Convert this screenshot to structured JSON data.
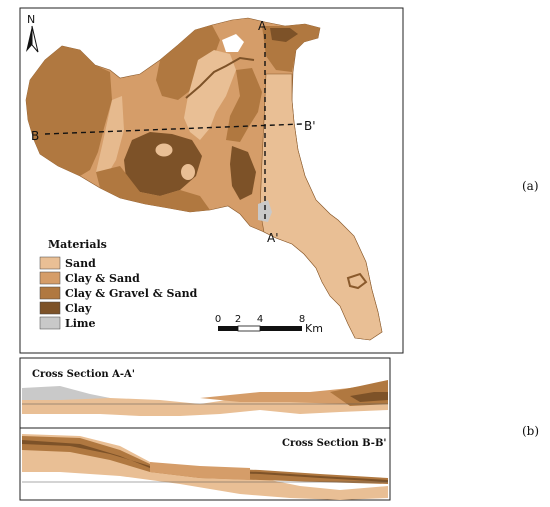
{
  "north_label": "N",
  "section_lines": {
    "a_label": "A",
    "a_prime_label": "A'",
    "b_label": "B",
    "b_prime_label": "B'"
  },
  "legend": {
    "title": "Materials",
    "items": [
      {
        "label": "Sand",
        "color": "#e9bf95"
      },
      {
        "label": "Clay & Sand",
        "color": "#d59d69"
      },
      {
        "label": "Clay & Gravel & Sand",
        "color": "#b07840"
      },
      {
        "label": "Clay",
        "color": "#7d5228"
      },
      {
        "label": "Lime",
        "color": "#c9c9c9"
      }
    ]
  },
  "scale_bar": {
    "ticks": [
      "0",
      "2",
      "4",
      "8"
    ],
    "unit": "Km"
  },
  "panel_labels": {
    "a": "(a)",
    "b": "(b)"
  },
  "cross_sections": {
    "a_title": "Cross Section A-A'",
    "b_title": "Cross Section B-B'"
  }
}
